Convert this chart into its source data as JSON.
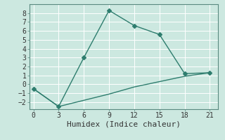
{
  "xlabel": "Humidex (Indice chaleur)",
  "line1_x": [
    0,
    3,
    6,
    9,
    12,
    15,
    18,
    21
  ],
  "line1_y": [
    -0.5,
    -2.5,
    3.0,
    8.3,
    6.6,
    5.6,
    1.2,
    1.3
  ],
  "line2_x": [
    0,
    3,
    6,
    9,
    12,
    15,
    18,
    21
  ],
  "line2_y": [
    -0.5,
    -2.5,
    -1.8,
    -1.1,
    -0.3,
    0.3,
    0.9,
    1.3
  ],
  "line_color": "#2e7d6e",
  "bg_color": "#cce8e0",
  "grid_color": "#ffffff",
  "xlim": [
    -0.5,
    22
  ],
  "ylim": [
    -2.8,
    9.0
  ],
  "xticks": [
    0,
    3,
    6,
    9,
    12,
    15,
    18,
    21
  ],
  "yticks": [
    -2,
    -1,
    0,
    1,
    2,
    3,
    4,
    5,
    6,
    7,
    8
  ],
  "marker": "D",
  "markersize": 3,
  "linewidth": 1.0,
  "xlabel_fontsize": 8,
  "tick_fontsize": 7,
  "spine_color": "#5a8a80"
}
